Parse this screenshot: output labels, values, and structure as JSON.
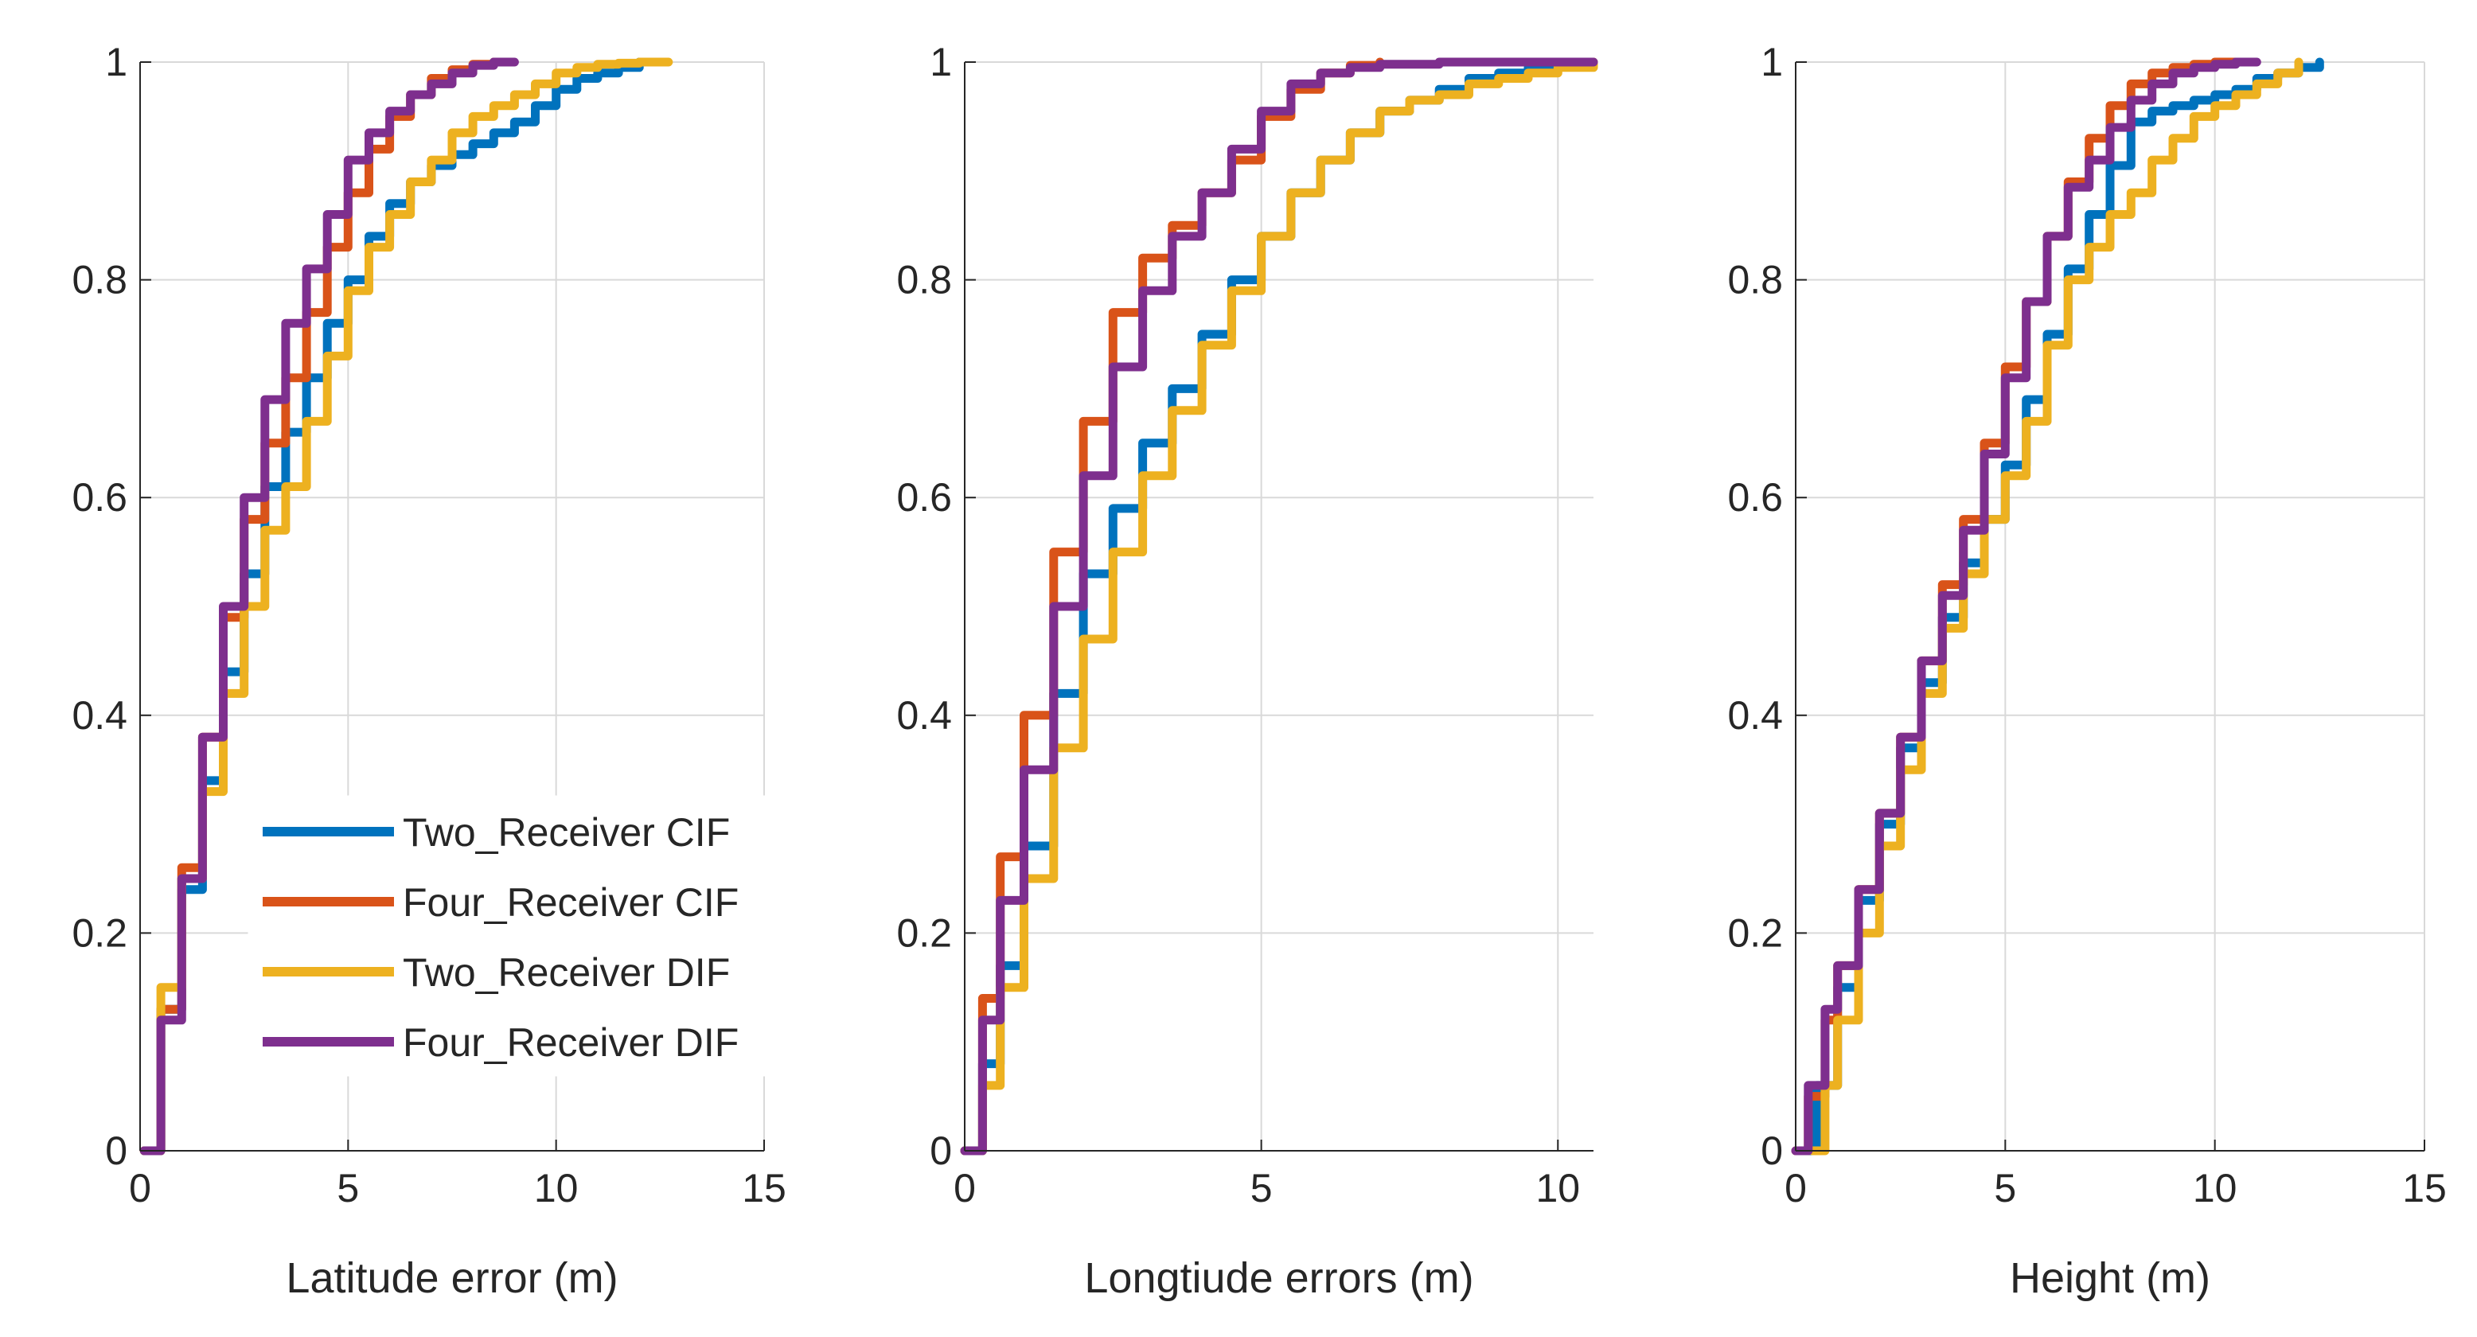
{
  "colors": {
    "two_cif": "#0072BD",
    "four_cif": "#D95319",
    "two_dif": "#EDB120",
    "four_dif": "#7E2F8E",
    "grid": "#d9d9d9",
    "axis": "#262626"
  },
  "legend": {
    "items": [
      {
        "label": "Two_Receiver CIF",
        "color": "#0072BD"
      },
      {
        "label": "Four_Receiver CIF",
        "color": "#D95319"
      },
      {
        "label": "Two_Receiver DIF",
        "color": "#EDB120"
      },
      {
        "label": "Four_Receiver DIF",
        "color": "#7E2F8E"
      }
    ]
  },
  "chart_data": [
    {
      "type": "line",
      "xlabel": "Latitude error (m)",
      "ylabel": "",
      "xlim": [
        0,
        15
      ],
      "ylim": [
        0,
        1
      ],
      "xticks": [
        0,
        5,
        10,
        15
      ],
      "yticks": [
        0,
        0.2,
        0.4,
        0.6,
        0.8,
        1
      ],
      "grid": true,
      "legend_position": "lower-right",
      "series": [
        {
          "name": "Two_Receiver CIF",
          "x": [
            0.1,
            0.5,
            1.0,
            1.5,
            2.0,
            2.5,
            3.0,
            3.5,
            4.0,
            4.5,
            5.0,
            5.5,
            6.0,
            6.5,
            7.0,
            7.5,
            8.0,
            8.5,
            9.0,
            9.5,
            10.0,
            10.5,
            11.0,
            11.5,
            12.0
          ],
          "y": [
            0,
            0.13,
            0.24,
            0.34,
            0.44,
            0.53,
            0.61,
            0.66,
            0.71,
            0.76,
            0.8,
            0.84,
            0.87,
            0.89,
            0.905,
            0.915,
            0.925,
            0.935,
            0.945,
            0.96,
            0.975,
            0.985,
            0.99,
            0.995,
            1.0
          ]
        },
        {
          "name": "Four_Receiver CIF",
          "x": [
            0.1,
            0.5,
            1.0,
            1.5,
            2.0,
            2.5,
            3.0,
            3.5,
            4.0,
            4.5,
            5.0,
            5.5,
            6.0,
            6.5,
            7.0,
            7.5,
            8.0,
            8.5
          ],
          "y": [
            0,
            0.13,
            0.26,
            0.38,
            0.49,
            0.58,
            0.65,
            0.71,
            0.77,
            0.83,
            0.88,
            0.92,
            0.95,
            0.97,
            0.985,
            0.993,
            0.998,
            1.0
          ]
        },
        {
          "name": "Two_Receiver DIF",
          "x": [
            0.1,
            0.5,
            1.0,
            1.5,
            2.0,
            2.5,
            3.0,
            3.5,
            4.0,
            4.5,
            5.0,
            5.5,
            6.0,
            6.5,
            7.0,
            7.5,
            8.0,
            8.5,
            9.0,
            9.5,
            10.0,
            10.5,
            11.0,
            11.5,
            12.0,
            12.7
          ],
          "y": [
            0,
            0.15,
            0.25,
            0.33,
            0.42,
            0.5,
            0.57,
            0.61,
            0.67,
            0.73,
            0.79,
            0.83,
            0.86,
            0.89,
            0.91,
            0.935,
            0.95,
            0.96,
            0.97,
            0.98,
            0.99,
            0.995,
            0.998,
            0.999,
            1.0,
            1.0
          ]
        },
        {
          "name": "Four_Receiver DIF",
          "x": [
            0.1,
            0.5,
            1.0,
            1.5,
            2.0,
            2.5,
            3.0,
            3.5,
            4.0,
            4.5,
            5.0,
            5.5,
            6.0,
            6.5,
            7.0,
            7.5,
            8.0,
            8.5,
            9.0
          ],
          "y": [
            0,
            0.12,
            0.25,
            0.38,
            0.5,
            0.6,
            0.69,
            0.76,
            0.81,
            0.86,
            0.91,
            0.935,
            0.955,
            0.97,
            0.98,
            0.99,
            0.997,
            1.0,
            1.0
          ]
        }
      ]
    },
    {
      "type": "line",
      "xlabel": "Longtiude errors (m)",
      "ylabel": "",
      "xlim": [
        0,
        10.6
      ],
      "ylim": [
        0,
        1
      ],
      "xticks": [
        0,
        5,
        10
      ],
      "yticks": [
        0,
        0.2,
        0.4,
        0.6,
        0.8,
        1
      ],
      "grid": true,
      "series": [
        {
          "name": "Two_Receiver CIF",
          "x": [
            0,
            0.3,
            0.6,
            1.0,
            1.5,
            2.0,
            2.5,
            3.0,
            3.5,
            4.0,
            4.5,
            5.0,
            5.5,
            6.0,
            6.5,
            7.0,
            7.5,
            8.0,
            8.5,
            9.0,
            9.5,
            10.0,
            10.5
          ],
          "y": [
            0,
            0.08,
            0.17,
            0.28,
            0.42,
            0.53,
            0.59,
            0.65,
            0.7,
            0.75,
            0.8,
            0.84,
            0.88,
            0.91,
            0.935,
            0.955,
            0.965,
            0.975,
            0.985,
            0.99,
            0.995,
            0.998,
            1.0
          ]
        },
        {
          "name": "Four_Receiver CIF",
          "x": [
            0,
            0.3,
            0.6,
            1.0,
            1.5,
            2.0,
            2.5,
            3.0,
            3.5,
            4.0,
            4.5,
            5.0,
            5.5,
            6.0,
            6.5,
            7.0
          ],
          "y": [
            0,
            0.14,
            0.27,
            0.4,
            0.55,
            0.67,
            0.77,
            0.82,
            0.85,
            0.88,
            0.91,
            0.95,
            0.975,
            0.99,
            0.997,
            1.0
          ]
        },
        {
          "name": "Two_Receiver DIF",
          "x": [
            0,
            0.3,
            0.6,
            1.0,
            1.5,
            2.0,
            2.5,
            3.0,
            3.5,
            4.0,
            4.5,
            5.0,
            5.5,
            6.0,
            6.5,
            7.0,
            7.5,
            8.0,
            8.5,
            9.0,
            9.5,
            10.0,
            10.6
          ],
          "y": [
            0,
            0.06,
            0.15,
            0.25,
            0.37,
            0.47,
            0.55,
            0.62,
            0.68,
            0.74,
            0.79,
            0.84,
            0.88,
            0.91,
            0.935,
            0.955,
            0.965,
            0.97,
            0.98,
            0.985,
            0.99,
            0.995,
            1.0
          ]
        },
        {
          "name": "Four_Receiver DIF",
          "x": [
            0,
            0.3,
            0.6,
            1.0,
            1.5,
            2.0,
            2.5,
            3.0,
            3.5,
            4.0,
            4.5,
            5.0,
            5.5,
            6.0,
            6.5,
            7.0,
            8.0,
            9.0,
            10.0,
            10.6
          ],
          "y": [
            0,
            0.12,
            0.23,
            0.35,
            0.5,
            0.62,
            0.72,
            0.79,
            0.84,
            0.88,
            0.92,
            0.955,
            0.98,
            0.99,
            0.995,
            0.998,
            1.0,
            1.0,
            1.0,
            1.0
          ]
        }
      ]
    },
    {
      "type": "line",
      "xlabel": "Height (m)",
      "ylabel": "",
      "xlim": [
        0,
        15
      ],
      "ylim": [
        0,
        1
      ],
      "xticks": [
        0,
        5,
        10,
        15
      ],
      "yticks": [
        0,
        0.2,
        0.4,
        0.6,
        0.8,
        1
      ],
      "grid": true,
      "series": [
        {
          "name": "Two_Receiver CIF",
          "x": [
            0.2,
            0.5,
            1.0,
            1.5,
            2.0,
            2.5,
            3.0,
            3.5,
            4.0,
            4.5,
            5.0,
            5.5,
            6.0,
            6.5,
            7.0,
            7.5,
            8.0,
            8.5,
            9.0,
            9.5,
            10.0,
            10.5,
            11.0,
            11.5,
            12.0,
            12.5
          ],
          "y": [
            0,
            0.06,
            0.15,
            0.23,
            0.3,
            0.37,
            0.43,
            0.49,
            0.54,
            0.58,
            0.63,
            0.69,
            0.75,
            0.81,
            0.86,
            0.905,
            0.945,
            0.955,
            0.96,
            0.965,
            0.97,
            0.975,
            0.985,
            0.99,
            0.995,
            1.0
          ]
        },
        {
          "name": "Four_Receiver CIF",
          "x": [
            0,
            0.3,
            0.7,
            1.0,
            1.5,
            2.0,
            2.5,
            3.0,
            3.5,
            4.0,
            4.5,
            5.0,
            5.5,
            6.0,
            6.5,
            7.0,
            7.5,
            8.0,
            8.5,
            9.0,
            9.5,
            10.0,
            10.5
          ],
          "y": [
            0,
            0.05,
            0.12,
            0.17,
            0.24,
            0.31,
            0.38,
            0.45,
            0.52,
            0.58,
            0.65,
            0.72,
            0.78,
            0.84,
            0.89,
            0.93,
            0.96,
            0.98,
            0.99,
            0.995,
            0.998,
            1.0,
            1.0
          ]
        },
        {
          "name": "Two_Receiver DIF",
          "x": [
            0.4,
            0.7,
            1.0,
            1.5,
            2.0,
            2.5,
            3.0,
            3.5,
            4.0,
            4.5,
            5.0,
            5.5,
            6.0,
            6.5,
            7.0,
            7.5,
            8.0,
            8.5,
            9.0,
            9.5,
            10.0,
            10.5,
            11.0,
            11.5,
            12.0
          ],
          "y": [
            0,
            0.06,
            0.12,
            0.2,
            0.28,
            0.35,
            0.42,
            0.48,
            0.53,
            0.58,
            0.62,
            0.67,
            0.74,
            0.8,
            0.83,
            0.86,
            0.88,
            0.91,
            0.93,
            0.95,
            0.96,
            0.97,
            0.98,
            0.99,
            1.0
          ]
        },
        {
          "name": "Four_Receiver DIF",
          "x": [
            0,
            0.3,
            0.7,
            1.0,
            1.5,
            2.0,
            2.5,
            3.0,
            3.5,
            4.0,
            4.5,
            5.0,
            5.5,
            6.0,
            6.5,
            7.0,
            7.5,
            8.0,
            8.5,
            9.0,
            9.5,
            10.0,
            10.5,
            11.0
          ],
          "y": [
            0,
            0.06,
            0.13,
            0.17,
            0.24,
            0.31,
            0.38,
            0.45,
            0.51,
            0.57,
            0.64,
            0.71,
            0.78,
            0.84,
            0.885,
            0.91,
            0.94,
            0.965,
            0.98,
            0.99,
            0.995,
            0.998,
            1.0,
            1.0
          ]
        }
      ]
    }
  ]
}
